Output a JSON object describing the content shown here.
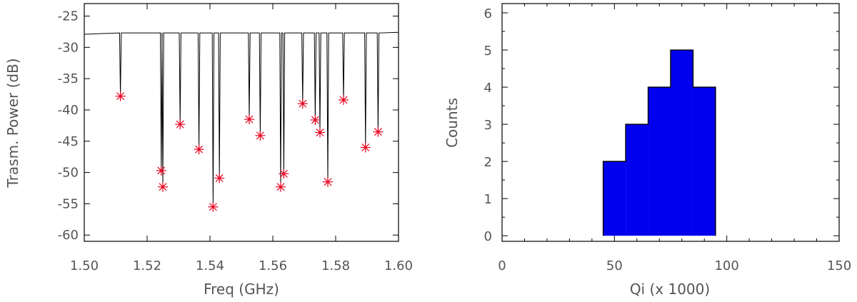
{
  "charts": [
    {
      "chart_data": {
        "type": "line",
        "xlabel": "Freq (GHz)",
        "ylabel": "Trasm. Power (dB)",
        "xlim": [
          1.5,
          1.6
        ],
        "ylim": [
          -61,
          -23
        ],
        "x_ticks": [
          "1.50",
          "1.52",
          "1.54",
          "1.56",
          "1.58",
          "1.60"
        ],
        "y_ticks": [
          "-25",
          "-30",
          "-35",
          "-40",
          "-45",
          "-50",
          "-55",
          "-60"
        ],
        "baseline_db": -27.7,
        "resonances": [
          {
            "freq": 1.5115,
            "depth": -37.8
          },
          {
            "freq": 1.5245,
            "depth": -49.7
          },
          {
            "freq": 1.525,
            "depth": -52.3
          },
          {
            "freq": 1.5305,
            "depth": -42.3
          },
          {
            "freq": 1.5365,
            "depth": -46.3
          },
          {
            "freq": 1.541,
            "depth": -55.5
          },
          {
            "freq": 1.543,
            "depth": -50.9
          },
          {
            "freq": 1.5525,
            "depth": -41.5
          },
          {
            "freq": 1.556,
            "depth": -44.1
          },
          {
            "freq": 1.5625,
            "depth": -52.3
          },
          {
            "freq": 1.5635,
            "depth": -50.2
          },
          {
            "freq": 1.5695,
            "depth": -39.0
          },
          {
            "freq": 1.5735,
            "depth": -41.6
          },
          {
            "freq": 1.575,
            "depth": -43.6
          },
          {
            "freq": 1.5775,
            "depth": -51.5
          },
          {
            "freq": 1.5825,
            "depth": -38.4
          },
          {
            "freq": 1.5895,
            "depth": -46.0
          },
          {
            "freq": 1.5935,
            "depth": -43.5
          }
        ],
        "marker_color": "#e8001c",
        "line_color": "#000000"
      }
    },
    {
      "chart_data": {
        "type": "bar",
        "xlabel": "Qi (x 1000)",
        "ylabel": "Counts",
        "xlim": [
          0,
          150
        ],
        "ylim": [
          -0.15,
          6.25
        ],
        "x_ticks": [
          "0",
          "50",
          "100",
          "150"
        ],
        "y_ticks": [
          "0",
          "1",
          "2",
          "3",
          "4",
          "5",
          "6"
        ],
        "bins": [
          {
            "from": 45,
            "to": 55,
            "count": 2
          },
          {
            "from": 55,
            "to": 65,
            "count": 3
          },
          {
            "from": 65,
            "to": 75,
            "count": 4
          },
          {
            "from": 75,
            "to": 85,
            "count": 5
          },
          {
            "from": 85,
            "to": 95,
            "count": 4
          }
        ],
        "fill_color": "#0000ee"
      }
    }
  ]
}
